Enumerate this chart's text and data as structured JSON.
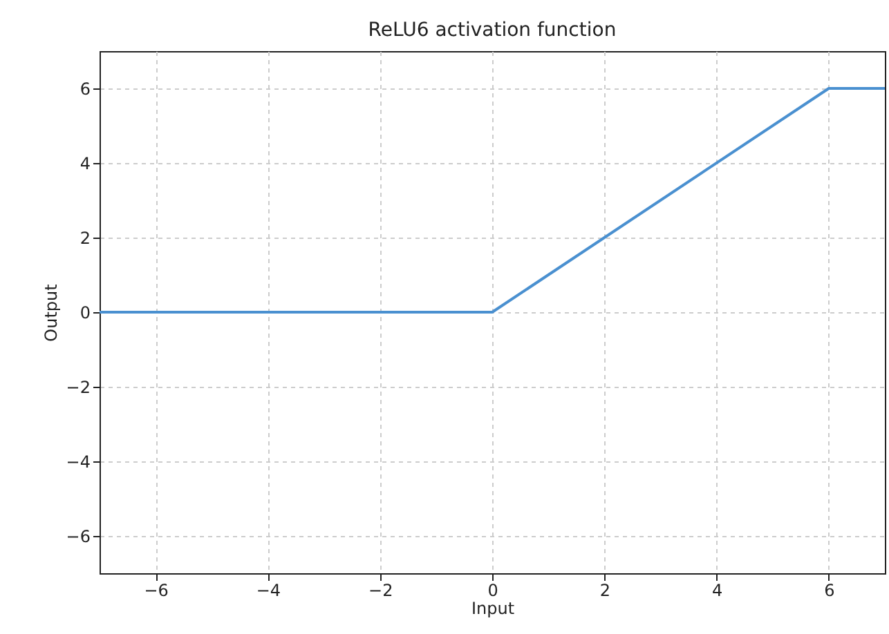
{
  "chart_data": {
    "type": "line",
    "title": "ReLU6 activation function",
    "xlabel": "Input",
    "ylabel": "Output",
    "x": [
      -7,
      0,
      6,
      7
    ],
    "series": [
      {
        "color": "#4a90d0",
        "values": [
          0,
          0,
          6,
          6
        ]
      }
    ],
    "xlim": [
      -7,
      7
    ],
    "ylim": [
      -7,
      7
    ],
    "xticks": [
      {
        "value": -6,
        "label": "−6"
      },
      {
        "value": -4,
        "label": "−4"
      },
      {
        "value": -2,
        "label": "−2"
      },
      0,
      2,
      4,
      6
    ],
    "yticks": [
      {
        "value": -6,
        "label": "−6"
      },
      {
        "value": -4,
        "label": "−4"
      },
      {
        "value": -2,
        "label": "−2"
      },
      0,
      2,
      4,
      6
    ],
    "grid": true,
    "line_style": "solid",
    "marker": "none"
  }
}
